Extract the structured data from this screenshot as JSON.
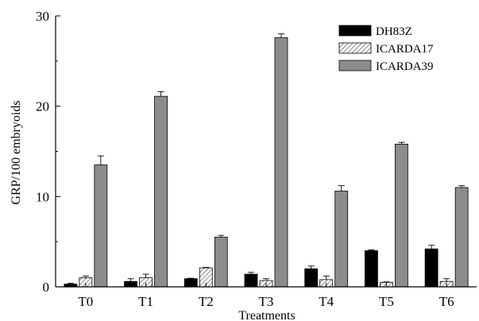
{
  "chart_data": {
    "type": "bar",
    "xlabel": "Treatments",
    "ylabel": "GRP/100 embryoids",
    "ylim": [
      0,
      30
    ],
    "yticks": [
      0,
      10,
      20,
      30
    ],
    "categories": [
      "T0",
      "T1",
      "T2",
      "T3",
      "T4",
      "T5",
      "T6"
    ],
    "legend_position": "top-right",
    "grid": false,
    "series": [
      {
        "name": "DH83Z",
        "fill": "#000000",
        "pattern": "solid",
        "values": [
          0.3,
          0.6,
          0.9,
          1.4,
          2.0,
          4.0,
          4.2
        ],
        "errors": [
          0.1,
          0.3,
          0.05,
          0.2,
          0.3,
          0.1,
          0.4
        ]
      },
      {
        "name": "ICARDA17",
        "fill": "#ffffff",
        "pattern": "diagonal-hatch",
        "values": [
          1.0,
          1.0,
          2.1,
          0.7,
          0.8,
          0.5,
          0.6
        ],
        "errors": [
          0.2,
          0.4,
          0.05,
          0.2,
          0.4,
          0.05,
          0.3
        ]
      },
      {
        "name": "ICARDA39",
        "fill": "#8c8c8c",
        "pattern": "solid",
        "values": [
          13.5,
          21.1,
          5.5,
          27.6,
          10.6,
          15.8,
          11.0
        ],
        "errors": [
          1.0,
          0.5,
          0.2,
          0.4,
          0.6,
          0.2,
          0.2
        ]
      }
    ]
  }
}
